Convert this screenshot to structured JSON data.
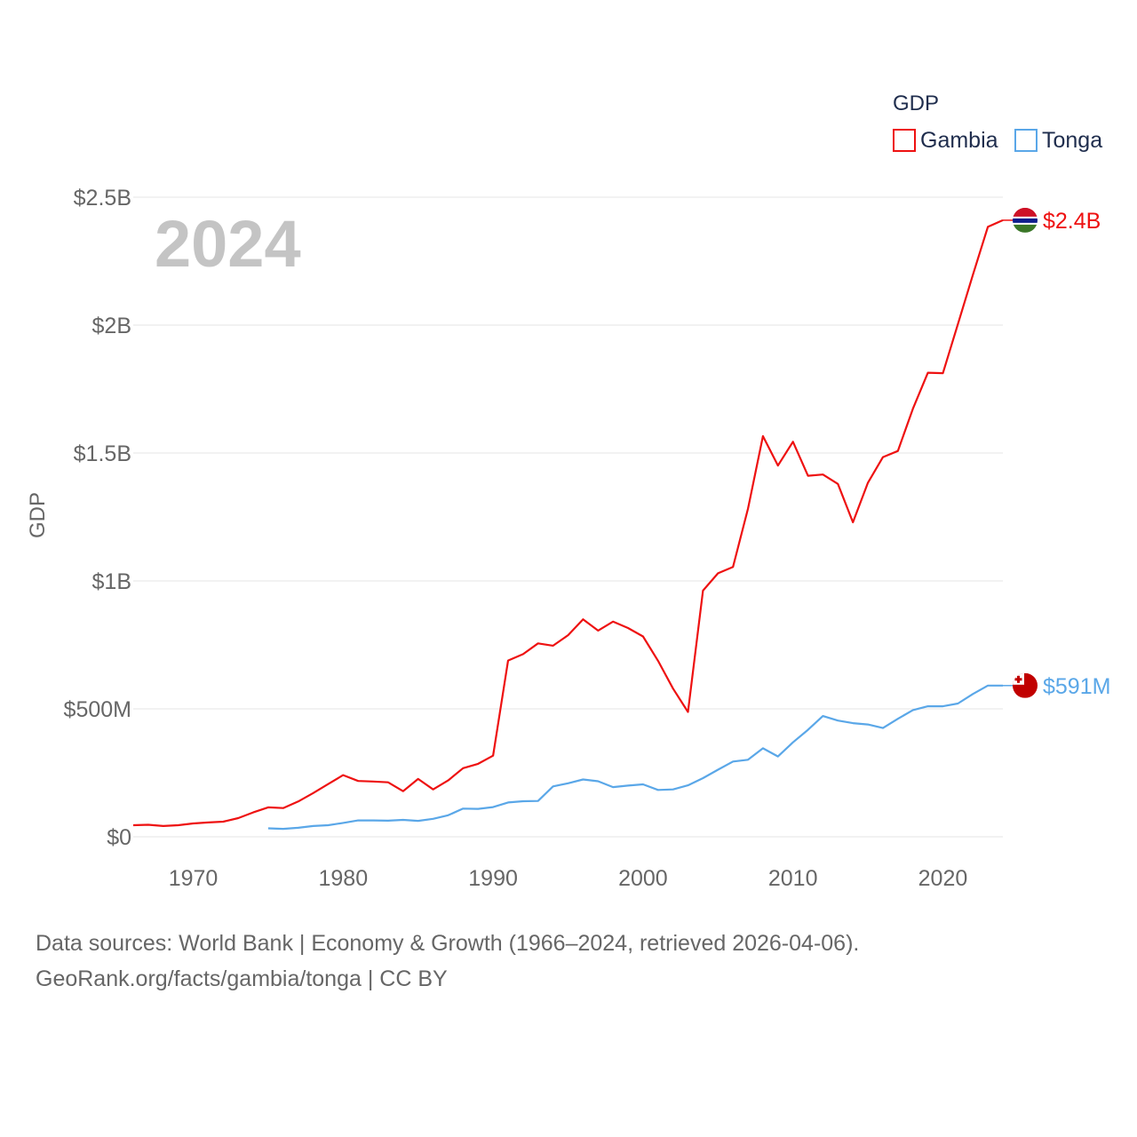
{
  "chart_data": {
    "type": "line",
    "year_label": "2024",
    "ylabel": "GDP",
    "xlim": [
      1966,
      2024
    ],
    "ylim": [
      0,
      2500000000
    ],
    "x_ticks": [
      1970,
      1980,
      1990,
      2000,
      2010,
      2020
    ],
    "x_tick_labels": [
      "1970",
      "1980",
      "1990",
      "2000",
      "2010",
      "2020"
    ],
    "y_ticks": [
      0,
      500000000,
      1000000000,
      1500000000,
      2000000000,
      2500000000
    ],
    "y_tick_labels": [
      "$0",
      "$500M",
      "$1B",
      "$1.5B",
      "$2B",
      "$2.5B"
    ],
    "legend": {
      "title": "GDP",
      "position": "top-right"
    },
    "series": [
      {
        "name": "Gambia",
        "color": "#ee1111",
        "end_label": "$2.4B",
        "flag": "gambia-flag",
        "x": [
          1966,
          1967,
          1968,
          1969,
          1970,
          1971,
          1972,
          1973,
          1974,
          1975,
          1976,
          1977,
          1978,
          1979,
          1980,
          1981,
          1982,
          1983,
          1984,
          1985,
          1986,
          1987,
          1988,
          1989,
          1990,
          1991,
          1992,
          1993,
          1994,
          1995,
          1996,
          1997,
          1998,
          1999,
          2000,
          2001,
          2002,
          2003,
          2004,
          2005,
          2006,
          2007,
          2008,
          2009,
          2010,
          2011,
          2012,
          2013,
          2014,
          2015,
          2016,
          2017,
          2018,
          2019,
          2020,
          2021,
          2022,
          2023,
          2024
        ],
        "values": [
          45000000,
          47000000,
          42000000,
          45000000,
          52000000,
          56000000,
          59000000,
          73000000,
          95000000,
          115000000,
          112000000,
          138000000,
          171000000,
          206000000,
          241000000,
          218000000,
          216000000,
          213000000,
          178000000,
          226000000,
          185000000,
          220000000,
          268000000,
          285000000,
          317000000,
          689000000,
          714000000,
          756000000,
          747000000,
          788000000,
          850000000,
          806000000,
          841000000,
          816000000,
          783000000,
          688000000,
          579000000,
          488000000,
          962000000,
          1030000000,
          1055000000,
          1283000000,
          1566000000,
          1451000000,
          1544000000,
          1411000000,
          1416000000,
          1379000000,
          1229000000,
          1384000000,
          1484000000,
          1508000000,
          1673000000,
          1814000000,
          1812000000,
          2004000000,
          2196000000,
          2384000000,
          2410000000
        ]
      },
      {
        "name": "Tonga",
        "color": "#5aa7e8",
        "end_label": "$591M",
        "flag": "tonga-flag",
        "x": [
          1975,
          1976,
          1977,
          1978,
          1979,
          1980,
          1981,
          1982,
          1983,
          1984,
          1985,
          1986,
          1987,
          1988,
          1989,
          1990,
          1991,
          1992,
          1993,
          1994,
          1995,
          1996,
          1997,
          1998,
          1999,
          2000,
          2001,
          2002,
          2003,
          2004,
          2005,
          2006,
          2007,
          2008,
          2009,
          2010,
          2011,
          2012,
          2013,
          2014,
          2015,
          2016,
          2017,
          2018,
          2019,
          2020,
          2021,
          2022,
          2023,
          2024
        ],
        "values": [
          33000000,
          31000000,
          35000000,
          42000000,
          45000000,
          54000000,
          64000000,
          64000000,
          63000000,
          66000000,
          62000000,
          70000000,
          84000000,
          110000000,
          109000000,
          116000000,
          134000000,
          139000000,
          140000000,
          197000000,
          209000000,
          224000000,
          217000000,
          194000000,
          200000000,
          205000000,
          183000000,
          185000000,
          201000000,
          229000000,
          262000000,
          294000000,
          301000000,
          346000000,
          314000000,
          369000000,
          418000000,
          472000000,
          454000000,
          444000000,
          439000000,
          425000000,
          461000000,
          495000000,
          510000000,
          510000000,
          521000000,
          558000000,
          591000000,
          591000000
        ]
      }
    ]
  },
  "source": {
    "line1": "Data sources: World Bank | Economy & Growth (1966–2024, retrieved 2026-04-06).",
    "line2": "GeoRank.org/facts/gambia/tonga | CC BY"
  }
}
